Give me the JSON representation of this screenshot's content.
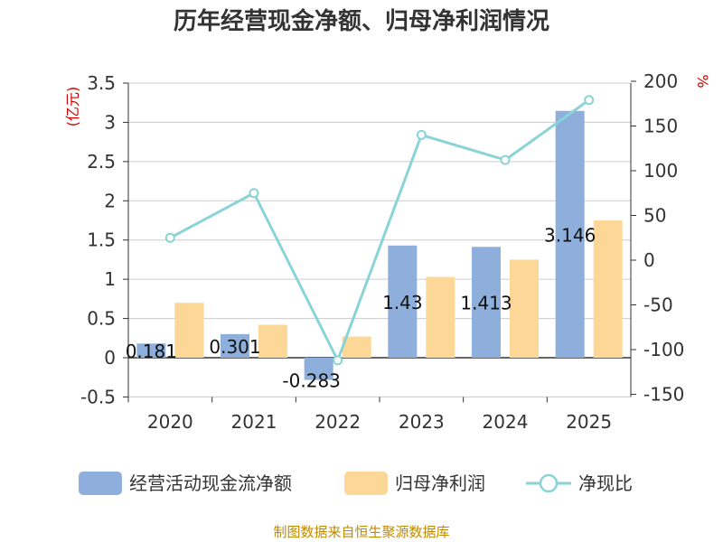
{
  "chart_data": {
    "type": "bar",
    "title": "历年经营现金净额、归母净利润情况",
    "categories": [
      "2020",
      "2021",
      "2022",
      "2023",
      "2024",
      "2025"
    ],
    "series": [
      {
        "name": "经营活动现金流净额",
        "kind": "bar",
        "axis": "left",
        "color": "#8eaedb",
        "values": [
          0.181,
          0.301,
          -0.283,
          1.43,
          1.413,
          3.146
        ],
        "labels": [
          "0.181",
          "0.301",
          "-0.283",
          "1.43",
          "1.413",
          "3.146"
        ]
      },
      {
        "name": "归母净利润",
        "kind": "bar",
        "axis": "left",
        "color": "#fdd797",
        "values": [
          0.7,
          0.42,
          0.27,
          1.03,
          1.25,
          1.75
        ]
      },
      {
        "name": "净现比",
        "kind": "line",
        "axis": "right",
        "color": "#8ad3d6",
        "values": [
          25,
          75,
          -112,
          140,
          112,
          179
        ]
      }
    ],
    "left_axis": {
      "unit": "(亿元)",
      "min": -0.5,
      "max": 3.5,
      "step": 0.5,
      "ticks": [
        "-0.5",
        "0",
        "0.5",
        "1",
        "1.5",
        "2",
        "2.5",
        "3",
        "3.5"
      ]
    },
    "right_axis": {
      "unit": "%",
      "min": -150,
      "max": 200,
      "step": 50,
      "ticks": [
        "-150",
        "-100",
        "-50",
        "0",
        "50",
        "100",
        "150",
        "200"
      ]
    },
    "grid": true,
    "legend_position": "bottom"
  },
  "footer": {
    "source": "制图数据来自恒生聚源数据库"
  }
}
